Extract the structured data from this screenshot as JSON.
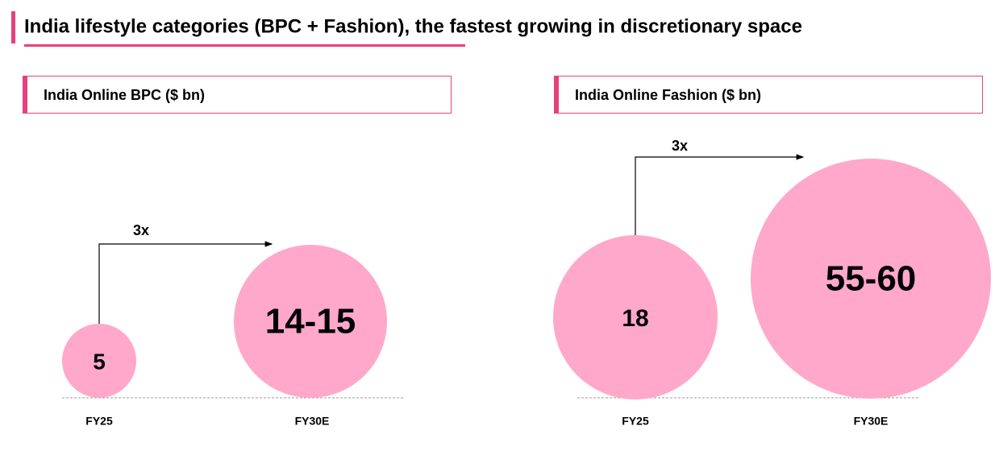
{
  "header": {
    "title": "India lifestyle categories (BPC + Fashion), the fastest growing in discretionary space"
  },
  "panels": [
    {
      "title": "India Online BPC ($ bn)",
      "growth": "3x",
      "items": [
        {
          "label": "FY25",
          "value": "5"
        },
        {
          "label": "FY30E",
          "value": "14-15"
        }
      ]
    },
    {
      "title": "India Online Fashion ($ bn)",
      "growth": "3x",
      "items": [
        {
          "label": "FY25",
          "value": "18"
        },
        {
          "label": "FY30E",
          "value": "55-60"
        }
      ]
    }
  ]
}
